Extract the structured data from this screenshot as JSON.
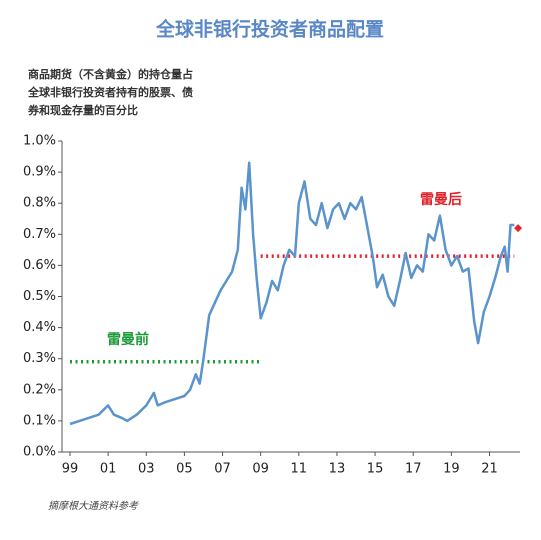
{
  "chart_data": {
    "type": "line",
    "title": "全球非银行投资者商品配置",
    "subtitle": [
      "商品期货（不含黄金）的持仓量占",
      "全球非银行投资者持有的股票、债",
      "券和现金存量的百分比"
    ],
    "source": "摘摩根大通资料参考",
    "xlim": [
      1999,
      2022.6
    ],
    "xticks": [
      {
        "value": 1999,
        "label": "99"
      },
      {
        "value": 2001,
        "label": "01"
      },
      {
        "value": 2003,
        "label": "03"
      },
      {
        "value": 2005,
        "label": "05"
      },
      {
        "value": 2007,
        "label": "07"
      },
      {
        "value": 2009,
        "label": "09"
      },
      {
        "value": 2011,
        "label": "11"
      },
      {
        "value": 2013,
        "label": "13"
      },
      {
        "value": 2015,
        "label": "15"
      },
      {
        "value": 2017,
        "label": "17"
      },
      {
        "value": 2019,
        "label": "19"
      },
      {
        "value": 2021,
        "label": "21"
      }
    ],
    "ylim": [
      0,
      1.0
    ],
    "yticks": [
      {
        "value": 0,
        "label": "0.0%"
      },
      {
        "value": 0.1,
        "label": "0.1%"
      },
      {
        "value": 0.2,
        "label": "0.2%"
      },
      {
        "value": 0.3,
        "label": "0.3%"
      },
      {
        "value": 0.4,
        "label": "0.4%"
      },
      {
        "value": 0.5,
        "label": "0.5%"
      },
      {
        "value": 0.6,
        "label": "0.6%"
      },
      {
        "value": 0.7,
        "label": "0.7%"
      },
      {
        "value": 0.8,
        "label": "0.8%"
      },
      {
        "value": 0.9,
        "label": "0.9%"
      },
      {
        "value": 1.0,
        "label": "1.0%"
      }
    ],
    "grid": false,
    "x": [
      1999.0,
      1999.5,
      2000.0,
      2000.5,
      2001.0,
      2001.3,
      2001.7,
      2002.0,
      2002.5,
      2003.0,
      2003.4,
      2003.6,
      2004.0,
      2004.5,
      2005.0,
      2005.3,
      2005.6,
      2005.8,
      2006.0,
      2006.3,
      2006.6,
      2006.9,
      2007.2,
      2007.5,
      2007.8,
      2008.0,
      2008.2,
      2008.4,
      2008.6,
      2008.8,
      2009.0,
      2009.3,
      2009.6,
      2009.9,
      2010.2,
      2010.5,
      2010.8,
      2011.0,
      2011.3,
      2011.6,
      2011.9,
      2012.2,
      2012.5,
      2012.8,
      2013.1,
      2013.4,
      2013.7,
      2014.0,
      2014.3,
      2014.6,
      2014.9,
      2015.1,
      2015.4,
      2015.7,
      2016.0,
      2016.3,
      2016.6,
      2016.9,
      2017.2,
      2017.5,
      2017.8,
      2018.1,
      2018.4,
      2018.7,
      2019.0,
      2019.3,
      2019.6,
      2019.9,
      2020.2,
      2020.4,
      2020.7,
      2021.0,
      2021.3,
      2021.6,
      2021.8,
      2021.95,
      2022.1,
      2022.3
    ],
    "series": [
      {
        "color": "#5b93cc",
        "values": [
          0.09,
          0.1,
          0.11,
          0.12,
          0.15,
          0.12,
          0.11,
          0.1,
          0.12,
          0.15,
          0.19,
          0.15,
          0.16,
          0.17,
          0.18,
          0.2,
          0.25,
          0.22,
          0.3,
          0.44,
          0.48,
          0.52,
          0.55,
          0.58,
          0.65,
          0.85,
          0.78,
          0.93,
          0.7,
          0.55,
          0.43,
          0.48,
          0.55,
          0.52,
          0.6,
          0.65,
          0.63,
          0.8,
          0.87,
          0.75,
          0.73,
          0.8,
          0.72,
          0.78,
          0.8,
          0.75,
          0.8,
          0.78,
          0.82,
          0.72,
          0.62,
          0.53,
          0.57,
          0.5,
          0.47,
          0.55,
          0.64,
          0.56,
          0.6,
          0.58,
          0.7,
          0.68,
          0.76,
          0.65,
          0.6,
          0.63,
          0.58,
          0.59,
          0.42,
          0.35,
          0.45,
          0.5,
          0.56,
          0.63,
          0.66,
          0.58,
          0.73,
          0.73
        ]
      }
    ],
    "marker": {
      "x": 2022.5,
      "value": 0.72,
      "color": "#e8242a"
    },
    "levels": [
      {
        "text": "雷曼前",
        "color": "#1f9a3a",
        "x": [
          1999,
          2009
        ],
        "value": 0.29
      },
      {
        "text": "雷曼后",
        "color": "#e0202a",
        "x": [
          2009,
          2022.3
        ],
        "value": 0.63
      }
    ]
  }
}
